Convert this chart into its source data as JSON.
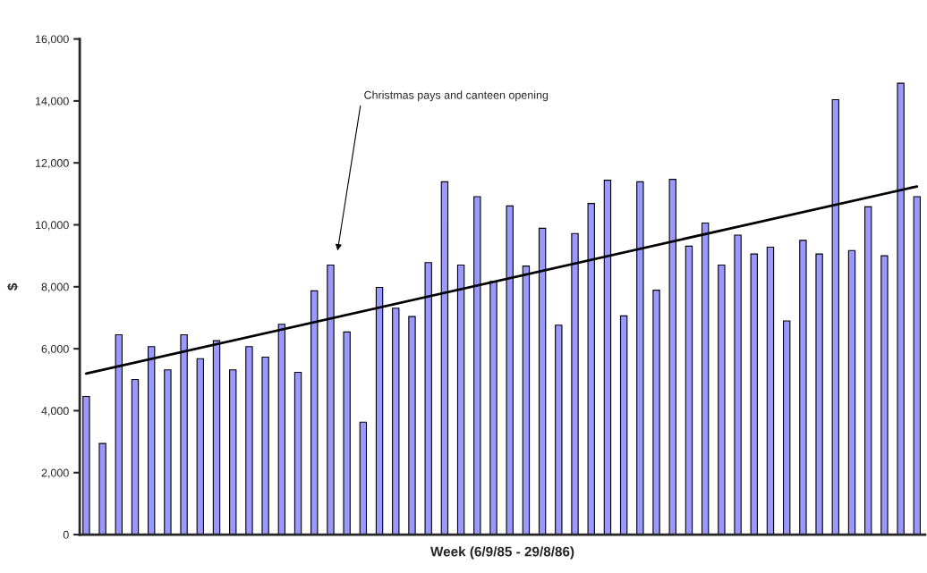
{
  "chart_data": {
    "type": "bar",
    "xlabel": "Week (6/9/85 - 29/8/86)",
    "ylabel": "$",
    "categories": [
      null,
      null,
      null,
      null,
      null,
      null,
      null,
      null,
      null,
      null,
      null,
      null,
      null,
      null,
      null,
      null,
      null,
      null,
      null,
      null,
      null,
      null,
      null,
      null,
      null,
      null,
      null,
      null,
      null,
      null,
      null,
      null,
      null,
      null,
      null,
      null,
      null,
      null,
      null,
      null,
      null,
      null,
      null,
      null,
      null,
      null,
      null,
      null,
      null,
      null,
      null,
      null
    ],
    "series": [
      {
        "color": "#9999ff",
        "values": [
          4460,
          2940,
          6450,
          5010,
          6070,
          5320,
          6450,
          5680,
          6260,
          5320,
          6070,
          5730,
          6790,
          5240,
          7870,
          8700,
          6540,
          3630,
          7980,
          7310,
          7040,
          8780,
          11390,
          8700,
          10910,
          8170,
          10610,
          8670,
          9890,
          6760,
          9720,
          10690,
          11440,
          7060,
          11390,
          7890,
          11470,
          9310,
          10060,
          8700,
          9670,
          9060,
          9280,
          6900,
          9500,
          9060,
          14040,
          9170,
          10580,
          9000,
          14570,
          10910
        ]
      },
      {
        "type": "line",
        "color": "#000000",
        "values": [
          5200,
          null,
          null,
          null,
          null,
          null,
          null,
          null,
          null,
          null,
          null,
          null,
          null,
          null,
          null,
          null,
          null,
          null,
          null,
          null,
          null,
          null,
          null,
          null,
          null,
          null,
          null,
          null,
          null,
          null,
          null,
          null,
          null,
          null,
          null,
          null,
          null,
          null,
          null,
          null,
          null,
          null,
          null,
          null,
          null,
          null,
          null,
          null,
          null,
          null,
          null,
          11240
        ]
      }
    ],
    "ylim": [
      0,
      16000
    ],
    "yticks": [
      {
        "value": 0,
        "label": "0"
      },
      {
        "value": 2000,
        "label": "2,000"
      },
      {
        "value": 4000,
        "label": "4,000"
      },
      {
        "value": 6000,
        "label": "6,000"
      },
      {
        "value": 8000,
        "label": "8,000"
      },
      {
        "value": 10000,
        "label": "10,000"
      },
      {
        "value": 12000,
        "label": "12,000"
      },
      {
        "value": 14000,
        "label": "14,000"
      },
      {
        "value": 16000,
        "label": "16,000"
      }
    ],
    "annotations": [
      "Christmas pays and canteen opening"
    ],
    "grid": false,
    "legend": false
  }
}
